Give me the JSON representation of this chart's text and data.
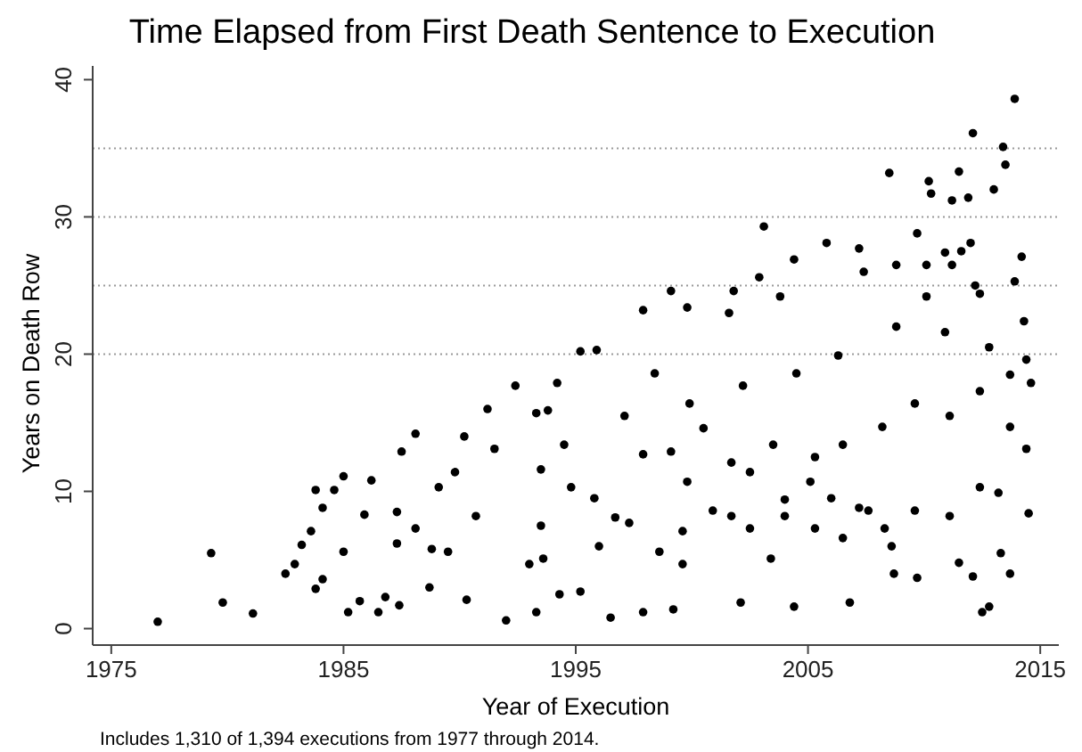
{
  "chart_data": {
    "type": "scatter",
    "title": "Time Elapsed from First Death Sentence to Execution",
    "xlabel": "Year of Execution",
    "ylabel": "Years on Death Row",
    "annotations": [
      "Includes 1,310 of 1,394 executions from 1977 through 2014."
    ],
    "x": [
      1977.0,
      1979.3,
      1979.8,
      1981.1,
      1982.5,
      1982.9,
      1983.2,
      1983.8,
      1983.6,
      1983.8,
      1984.1,
      1984.1,
      1985.0,
      1984.6,
      1985.0,
      1985.2,
      1985.7,
      1985.9,
      1986.2,
      1986.5,
      1986.8,
      1987.4,
      1987.3,
      1987.3,
      1987.5,
      1988.1,
      1988.1,
      1988.7,
      1988.8,
      1989.1,
      1989.5,
      1989.8,
      1990.2,
      1990.3,
      1990.7,
      1991.2,
      1991.5,
      1992.0,
      1992.4,
      1993.0,
      1993.3,
      1993.5,
      1993.8,
      1993.3,
      1993.5,
      1993.6,
      1994.2,
      1994.3,
      1994.5,
      1994.8,
      1995.2,
      1995.2,
      1995.8,
      1995.9,
      1996.0,
      1996.5,
      1996.7,
      1997.1,
      1997.3,
      1997.9,
      1997.9,
      1997.9,
      1998.4,
      1998.6,
      1999.1,
      1999.1,
      1999.2,
      1999.6,
      1999.6,
      1999.8,
      1999.8,
      1999.9,
      2000.5,
      2000.9,
      2001.6,
      2001.7,
      2001.7,
      2001.8,
      2002.1,
      2002.2,
      2002.5,
      2002.5,
      2002.9,
      2003.1,
      2003.4,
      2003.5,
      2003.8,
      2004.0,
      2004.0,
      2004.4,
      2004.4,
      2004.5,
      2005.1,
      2005.3,
      2005.3,
      2005.8,
      2006.0,
      2006.3,
      2006.5,
      2006.5,
      2006.8,
      2007.2,
      2007.2,
      2007.4,
      2007.6,
      2008.2,
      2008.3,
      2008.5,
      2008.6,
      2008.7,
      2008.8,
      2008.8,
      2009.6,
      2009.6,
      2009.7,
      2009.7,
      2010.1,
      2010.1,
      2010.2,
      2010.3,
      2010.9,
      2010.9,
      2011.1,
      2011.1,
      2011.2,
      2011.2,
      2011.5,
      2011.5,
      2011.6,
      2011.9,
      2012.0,
      2012.1,
      2012.1,
      2012.2,
      2012.4,
      2012.4,
      2012.4,
      2012.5,
      2012.8,
      2012.8,
      2013.0,
      2013.2,
      2013.3,
      2013.4,
      2013.5,
      2013.7,
      2013.7,
      2013.7,
      2013.9,
      2013.9,
      2014.2,
      2014.3,
      2014.4,
      2014.4,
      2014.5,
      2014.6
    ],
    "values": [
      0.5,
      5.5,
      1.9,
      1.1,
      4.0,
      4.7,
      6.1,
      10.1,
      7.1,
      2.9,
      3.6,
      8.8,
      11.1,
      10.1,
      5.6,
      1.2,
      2.0,
      8.3,
      10.8,
      1.2,
      2.3,
      1.7,
      6.2,
      8.5,
      12.9,
      14.2,
      7.3,
      3.0,
      5.8,
      10.3,
      5.6,
      11.4,
      14.0,
      2.1,
      8.2,
      16.0,
      13.1,
      0.6,
      17.7,
      4.7,
      1.2,
      11.6,
      15.9,
      15.7,
      7.5,
      5.1,
      17.9,
      2.5,
      13.4,
      10.3,
      20.2,
      2.7,
      9.5,
      20.3,
      6.0,
      0.8,
      8.1,
      15.5,
      7.7,
      23.2,
      12.7,
      1.2,
      18.6,
      5.6,
      24.6,
      12.9,
      1.4,
      7.1,
      4.7,
      23.4,
      10.7,
      16.4,
      14.6,
      8.6,
      23.0,
      12.1,
      8.2,
      24.6,
      1.9,
      17.7,
      7.3,
      11.4,
      25.6,
      29.3,
      5.1,
      13.4,
      24.2,
      8.2,
      9.4,
      1.6,
      26.9,
      18.6,
      10.7,
      7.3,
      12.5,
      28.1,
      9.5,
      19.9,
      13.4,
      6.6,
      1.9,
      8.8,
      27.7,
      26.0,
      8.6,
      14.7,
      7.3,
      33.2,
      6.0,
      4.0,
      22.0,
      26.5,
      8.6,
      16.4,
      3.7,
      28.8,
      24.2,
      26.5,
      32.6,
      31.7,
      21.6,
      27.4,
      8.2,
      15.5,
      31.2,
      26.5,
      4.8,
      33.3,
      27.5,
      31.4,
      28.1,
      3.8,
      36.1,
      25.0,
      10.3,
      17.3,
      24.4,
      1.2,
      1.6,
      20.5,
      32.0,
      9.9,
      5.5,
      35.1,
      33.8,
      4.0,
      14.7,
      18.5,
      38.6,
      25.3,
      27.1,
      22.4,
      13.1,
      19.6,
      8.4,
      17.9
    ],
    "color": "#000000",
    "marker": "circle",
    "xlim": [
      1974.2,
      2015.8
    ],
    "ylim": [
      -1.2,
      41
    ],
    "xticks": [
      1975,
      1985,
      1995,
      2005,
      2015
    ],
    "yticks": [
      0,
      10,
      20,
      30,
      40
    ],
    "ref_lines": [
      {
        "axis": "y",
        "value": 20,
        "color": "#999999",
        "line_style": "dotted"
      },
      {
        "axis": "y",
        "value": 25,
        "color": "#999999",
        "line_style": "dotted"
      },
      {
        "axis": "y",
        "value": 30,
        "color": "#999999",
        "line_style": "dotted"
      },
      {
        "axis": "y",
        "value": 35,
        "color": "#999999",
        "line_style": "dotted"
      }
    ]
  }
}
